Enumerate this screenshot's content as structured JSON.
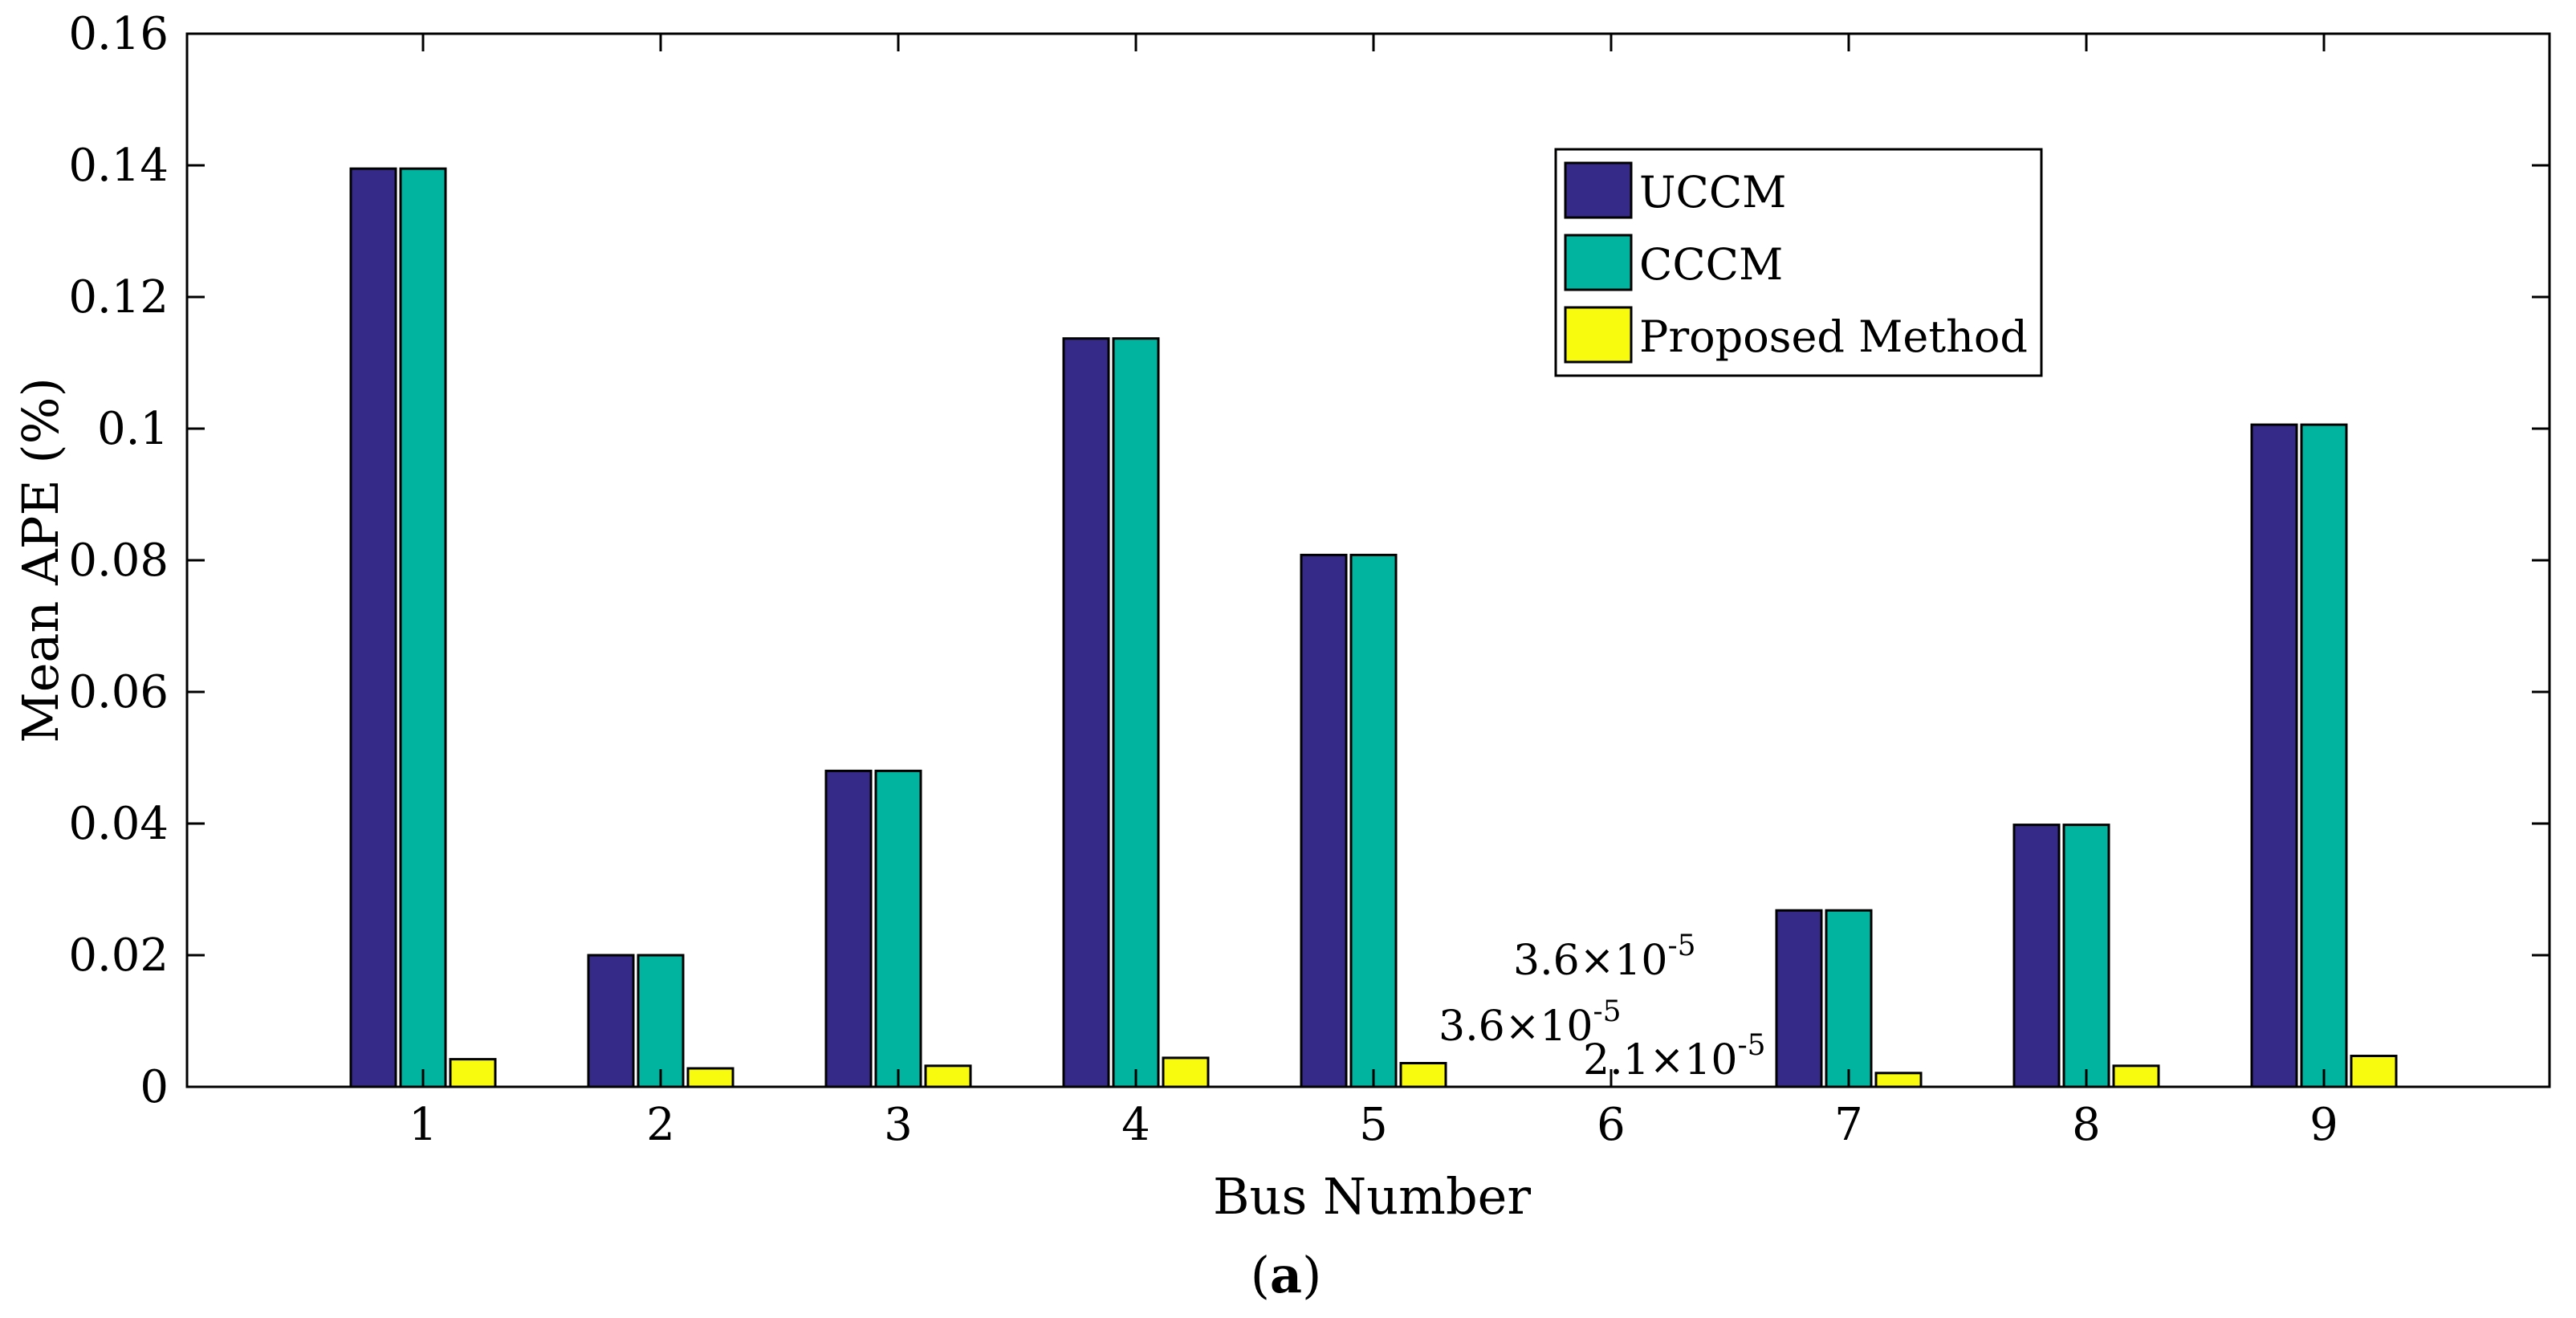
{
  "chart_data": {
    "type": "bar",
    "title": "",
    "xlabel": "Bus Number",
    "ylabel": "Mean APE (%)",
    "caption_open": "(",
    "caption_letter": "a",
    "caption_close": ")",
    "categories": [
      "1",
      "2",
      "3",
      "4",
      "5",
      "6",
      "7",
      "8",
      "9"
    ],
    "ylim": [
      0,
      0.16
    ],
    "yticks": [
      "0",
      "0.02",
      "0.04",
      "0.06",
      "0.08",
      "0.1",
      "0.12",
      "0.14",
      "0.16"
    ],
    "ytick_values": [
      0,
      0.02,
      0.04,
      0.06,
      0.08,
      0.1,
      0.12,
      0.14,
      0.16
    ],
    "legend_position": "top-right",
    "series": [
      {
        "name": "UCCM",
        "color": "#352a87",
        "values": [
          0.1395,
          0.02,
          0.048,
          0.1137,
          0.0808,
          0.0,
          0.0268,
          0.0398,
          0.1006
        ]
      },
      {
        "name": "CCCM",
        "color": "#00b4a0",
        "values": [
          0.1395,
          0.02,
          0.048,
          0.1137,
          0.0808,
          0.0,
          0.0268,
          0.0398,
          0.1006
        ]
      },
      {
        "name": "Proposed Method",
        "color": "#f9fb0e",
        "values": [
          0.0042,
          0.0028,
          0.0032,
          0.0044,
          0.0036,
          0.0,
          0.0021,
          0.0032,
          0.0047
        ]
      }
    ],
    "annotations": [
      {
        "text": "3.6×10",
        "exp": "-5",
        "value": 3.6e-05,
        "series": "UCCM",
        "category": "6"
      },
      {
        "text": "3.6×10",
        "exp": "-5",
        "value": 3.6e-05,
        "series": "CCCM",
        "category": "6"
      },
      {
        "text": "2.1×10",
        "exp": "-5",
        "value": 2.1e-05,
        "series": "Proposed Method",
        "category": "6"
      }
    ]
  }
}
